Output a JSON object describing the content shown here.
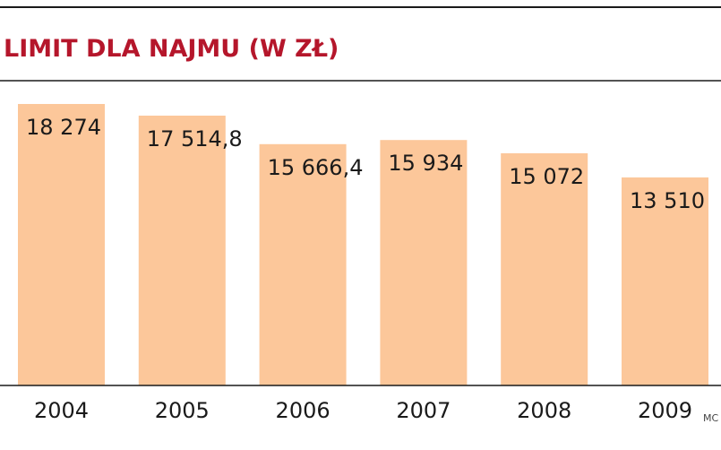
{
  "chart_data": {
    "type": "bar",
    "title": "LIMIT DLA NAJMU (W ZŁ)",
    "xlabel": "",
    "ylabel": "",
    "categories": [
      "2004",
      "2005",
      "2006",
      "2007",
      "2008",
      "2009"
    ],
    "values": [
      18274,
      17514.8,
      15666.4,
      15934,
      15072,
      13510
    ],
    "value_labels": [
      "18 274",
      "17 514,8",
      "15 666,4",
      "15 934",
      "15 072",
      "13 510"
    ],
    "ylim": [
      0,
      19000
    ],
    "grid": false,
    "legend": "none",
    "source": "MC"
  },
  "colors": {
    "bar": "#fcc79a",
    "title": "#b5162b",
    "rule": "#1a1a1a",
    "text": "#1a1a1a",
    "source": "#444444"
  }
}
